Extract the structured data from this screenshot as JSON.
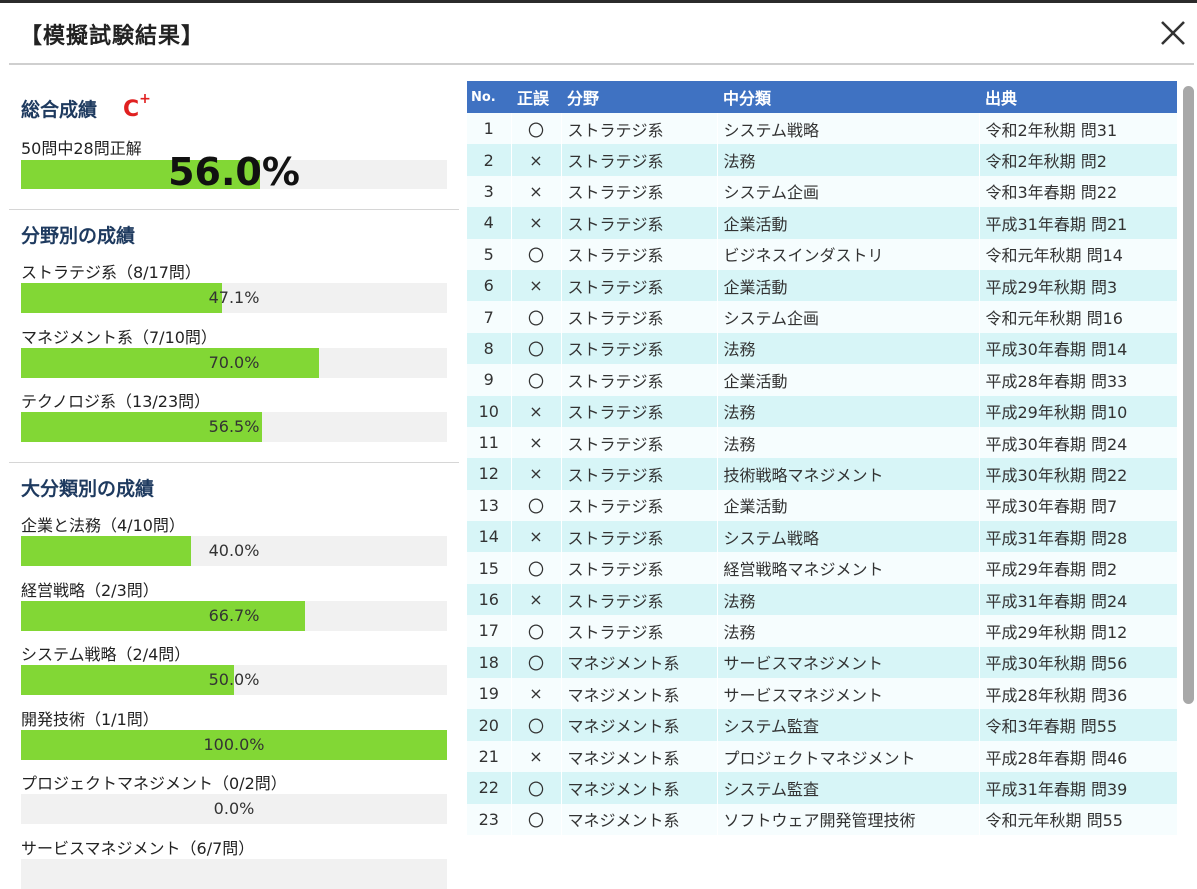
{
  "dialog": {
    "title": "【模擬試験結果】",
    "close_icon": "close-icon"
  },
  "overall": {
    "heading": "総合成績",
    "grade": "C",
    "grade_sup": "+",
    "summary": "50問中28問正解",
    "percent_text": "56.0%",
    "percent": 56.0
  },
  "by_field": {
    "heading": "分野別の成績",
    "items": [
      {
        "label": "ストラテジ系（8/17問）",
        "percent_text": "47.1%",
        "percent": 47.1
      },
      {
        "label": "マネジメント系（7/10問）",
        "percent_text": "70.0%",
        "percent": 70.0
      },
      {
        "label": "テクノロジ系（13/23問）",
        "percent_text": "56.5%",
        "percent": 56.5
      }
    ]
  },
  "by_category": {
    "heading": "大分類別の成績",
    "items": [
      {
        "label": "企業と法務（4/10問）",
        "percent_text": "40.0%",
        "percent": 40.0
      },
      {
        "label": "経営戦略（2/3問）",
        "percent_text": "66.7%",
        "percent": 66.7
      },
      {
        "label": "システム戦略（2/4問）",
        "percent_text": "50.0%",
        "percent": 50.0
      },
      {
        "label": "開発技術（1/1問）",
        "percent_text": "100.0%",
        "percent": 100.0
      },
      {
        "label": "プロジェクトマネジメント（0/2問）",
        "percent_text": "0.0%",
        "percent": 0.0
      },
      {
        "label": "サービスマネジメント（6/7問）",
        "percent_text": "",
        "percent": null
      }
    ]
  },
  "results_table": {
    "headers": {
      "no": "No.",
      "mark": "正誤",
      "field": "分野",
      "category": "中分類",
      "source": "出典"
    },
    "rows": [
      {
        "no": "1",
        "mark": "〇",
        "field": "ストラテジ系",
        "category": "システム戦略",
        "source": "令和2年秋期 問31"
      },
      {
        "no": "2",
        "mark": "×",
        "field": "ストラテジ系",
        "category": "法務",
        "source": "令和2年秋期 問2"
      },
      {
        "no": "3",
        "mark": "×",
        "field": "ストラテジ系",
        "category": "システム企画",
        "source": "令和3年春期 問22"
      },
      {
        "no": "4",
        "mark": "×",
        "field": "ストラテジ系",
        "category": "企業活動",
        "source": "平成31年春期 問21"
      },
      {
        "no": "5",
        "mark": "〇",
        "field": "ストラテジ系",
        "category": "ビジネスインダストリ",
        "source": "令和元年秋期 問14"
      },
      {
        "no": "6",
        "mark": "×",
        "field": "ストラテジ系",
        "category": "企業活動",
        "source": "平成29年秋期 問3"
      },
      {
        "no": "7",
        "mark": "〇",
        "field": "ストラテジ系",
        "category": "システム企画",
        "source": "令和元年秋期 問16"
      },
      {
        "no": "8",
        "mark": "〇",
        "field": "ストラテジ系",
        "category": "法務",
        "source": "平成30年春期 問14"
      },
      {
        "no": "9",
        "mark": "〇",
        "field": "ストラテジ系",
        "category": "企業活動",
        "source": "平成28年春期 問33"
      },
      {
        "no": "10",
        "mark": "×",
        "field": "ストラテジ系",
        "category": "法務",
        "source": "平成29年秋期 問10"
      },
      {
        "no": "11",
        "mark": "×",
        "field": "ストラテジ系",
        "category": "法務",
        "source": "平成30年春期 問24"
      },
      {
        "no": "12",
        "mark": "×",
        "field": "ストラテジ系",
        "category": "技術戦略マネジメント",
        "source": "平成30年秋期 問22"
      },
      {
        "no": "13",
        "mark": "〇",
        "field": "ストラテジ系",
        "category": "企業活動",
        "source": "平成30年春期 問7"
      },
      {
        "no": "14",
        "mark": "×",
        "field": "ストラテジ系",
        "category": "システム戦略",
        "source": "平成31年春期 問28"
      },
      {
        "no": "15",
        "mark": "〇",
        "field": "ストラテジ系",
        "category": "経営戦略マネジメント",
        "source": "平成29年春期 問2"
      },
      {
        "no": "16",
        "mark": "×",
        "field": "ストラテジ系",
        "category": "法務",
        "source": "平成31年春期 問24"
      },
      {
        "no": "17",
        "mark": "〇",
        "field": "ストラテジ系",
        "category": "法務",
        "source": "平成29年秋期 問12"
      },
      {
        "no": "18",
        "mark": "〇",
        "field": "マネジメント系",
        "category": "サービスマネジメント",
        "source": "平成30年秋期 問56"
      },
      {
        "no": "19",
        "mark": "×",
        "field": "マネジメント系",
        "category": "サービスマネジメント",
        "source": "平成28年秋期 問36"
      },
      {
        "no": "20",
        "mark": "〇",
        "field": "マネジメント系",
        "category": "システム監査",
        "source": "令和3年春期 問55"
      },
      {
        "no": "21",
        "mark": "×",
        "field": "マネジメント系",
        "category": "プロジェクトマネジメント",
        "source": "平成28年春期 問46"
      },
      {
        "no": "22",
        "mark": "〇",
        "field": "マネジメント系",
        "category": "システム監査",
        "source": "平成31年春期 問39"
      },
      {
        "no": "23",
        "mark": "〇",
        "field": "マネジメント系",
        "category": "ソフトウェア開発管理技術",
        "source": "令和元年秋期 問55"
      }
    ]
  },
  "colors": {
    "header_blue": "#3f72c2",
    "bar_green": "#82d735",
    "grade_red": "#e02020",
    "heading_navy": "#1e3a5f",
    "row_even": "#d7f5f7"
  }
}
